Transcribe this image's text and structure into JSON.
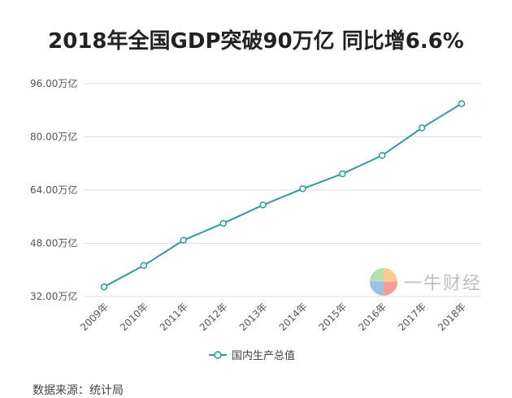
{
  "title": "2018年全国GDP突破90万亿 同比增6.6%",
  "watermark_text": "一牛财经",
  "footer_text": "数据来源：统计局",
  "colors": {
    "line": "#2e9a9a",
    "grid": "#dddddd",
    "axis_text": "#555555"
  },
  "chart_data": {
    "type": "line",
    "x": [
      "2009年",
      "2010年",
      "2011年",
      "2012年",
      "2013年",
      "2014年",
      "2015年",
      "2016年",
      "2017年",
      "2018年"
    ],
    "series": [
      {
        "name": "国内生产总值",
        "values": [
          34.9,
          41.3,
          48.9,
          54.0,
          59.5,
          64.4,
          68.9,
          74.4,
          82.7,
          90.0
        ]
      }
    ],
    "y_ticks": [
      "32.00万亿",
      "48.00万亿",
      "64.00万亿",
      "80.00万亿",
      "96.00万亿"
    ],
    "ylim": [
      32,
      96
    ],
    "grid": true,
    "legend_position": "bottom-center"
  }
}
